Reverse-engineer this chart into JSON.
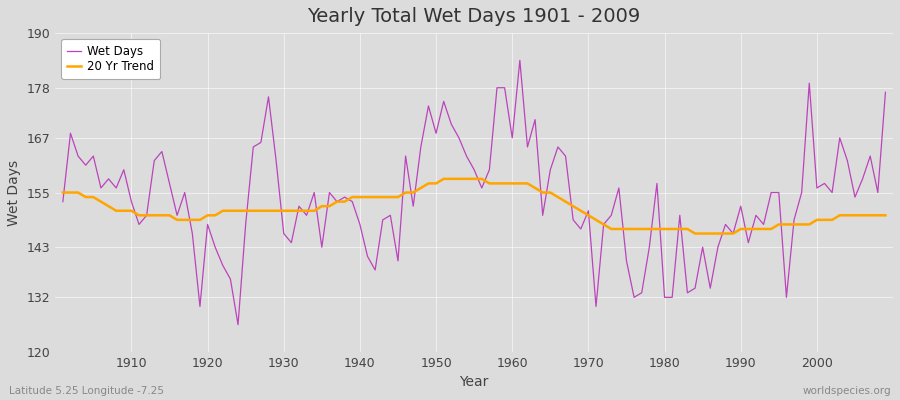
{
  "title": "Yearly Total Wet Days 1901 - 2009",
  "xlabel": "Year",
  "ylabel": "Wet Days",
  "subtitle": "Latitude 5.25 Longitude -7.25",
  "watermark": "worldspecies.org",
  "ylim": [
    120,
    190
  ],
  "yticks": [
    120,
    132,
    143,
    155,
    167,
    178,
    190
  ],
  "start_year": 1901,
  "end_year": 2009,
  "wet_days_color": "#BB44BB",
  "trend_color": "#FFA500",
  "background_color": "#DCDCDC",
  "plot_bg_color": "#DCDCDC",
  "legend_labels": [
    "Wet Days",
    "20 Yr Trend"
  ],
  "wet_days": [
    153,
    168,
    163,
    161,
    163,
    156,
    158,
    156,
    160,
    153,
    148,
    150,
    162,
    164,
    157,
    150,
    155,
    146,
    130,
    148,
    143,
    139,
    136,
    126,
    148,
    165,
    166,
    176,
    162,
    146,
    144,
    152,
    150,
    155,
    143,
    155,
    153,
    154,
    153,
    148,
    141,
    138,
    149,
    150,
    140,
    163,
    152,
    165,
    174,
    168,
    175,
    170,
    167,
    163,
    160,
    156,
    160,
    178,
    178,
    167,
    184,
    165,
    171,
    150,
    160,
    165,
    163,
    149,
    147,
    151,
    130,
    148,
    150,
    156,
    140,
    132,
    133,
    143,
    157,
    132,
    132,
    150,
    133,
    134,
    143,
    134,
    143,
    148,
    146,
    152,
    144,
    150,
    148,
    155,
    155,
    132,
    149,
    155,
    179,
    156,
    157,
    155,
    167,
    162,
    154,
    158,
    163,
    155,
    177
  ],
  "trend": [
    155,
    155,
    155,
    154,
    154,
    153,
    152,
    151,
    151,
    151,
    150,
    150,
    150,
    150,
    150,
    149,
    149,
    149,
    149,
    150,
    150,
    151,
    151,
    151,
    151,
    151,
    151,
    151,
    151,
    151,
    151,
    151,
    151,
    151,
    152,
    152,
    153,
    153,
    154,
    154,
    154,
    154,
    154,
    154,
    154,
    155,
    155,
    156,
    157,
    157,
    158,
    158,
    158,
    158,
    158,
    158,
    157,
    157,
    157,
    157,
    157,
    157,
    156,
    155,
    155,
    154,
    153,
    152,
    151,
    150,
    149,
    148,
    147,
    147,
    147,
    147,
    147,
    147,
    147,
    147,
    147,
    147,
    147,
    146,
    146,
    146,
    146,
    146,
    146,
    147,
    147,
    147,
    147,
    147,
    148,
    148,
    148,
    148,
    148,
    149,
    149,
    149,
    150,
    150,
    150,
    150,
    150,
    150,
    150
  ],
  "xticks": [
    1910,
    1920,
    1930,
    1940,
    1950,
    1960,
    1970,
    1980,
    1990,
    2000
  ]
}
